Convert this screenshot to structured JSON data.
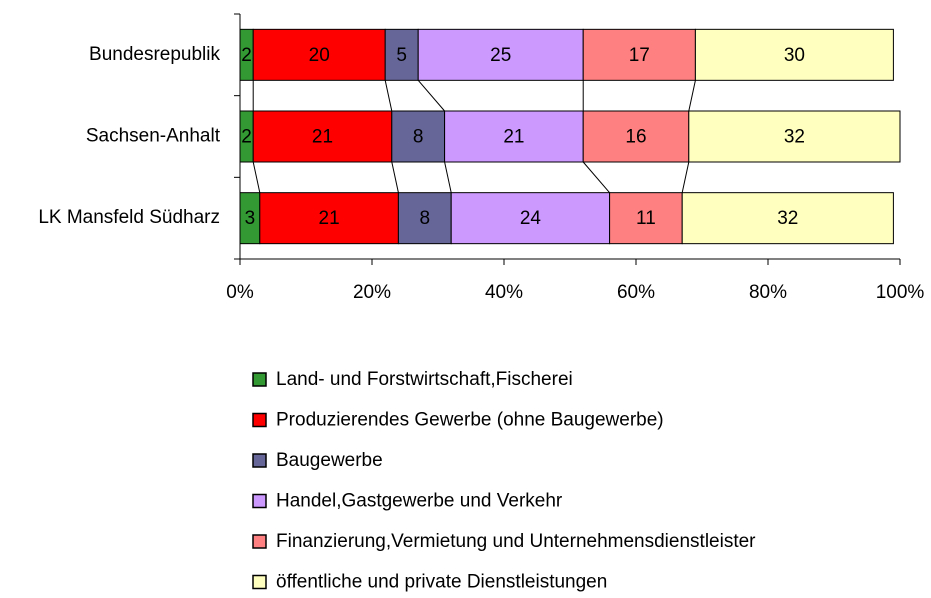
{
  "chart_data": {
    "type": "stacked_barh",
    "categories": [
      "Bundesrepublik",
      "Sachsen-Anhalt",
      "LK Mansfeld Südharz"
    ],
    "series": [
      {
        "name": "Land- und Forstwirtschaft,Fischerei",
        "color": "#339933",
        "values": [
          2,
          2,
          3
        ]
      },
      {
        "name": "Produzierendes Gewerbe (ohne Baugewerbe)",
        "color": "#ff0000",
        "values": [
          20,
          21,
          21
        ]
      },
      {
        "name": "Baugewerbe",
        "color": "#666699",
        "values": [
          5,
          8,
          8
        ]
      },
      {
        "name": "Handel,Gastgewerbe und Verkehr",
        "color": "#cc99ff",
        "values": [
          25,
          21,
          24
        ]
      },
      {
        "name": "Finanzierung,Vermietung und Unternehmensdienstleister",
        "color": "#ff8080",
        "values": [
          17,
          16,
          11
        ]
      },
      {
        "name": "öffentliche und private Dienstleistungen",
        "color": "#ffffc0",
        "values": [
          30,
          32,
          32
        ]
      }
    ],
    "xlim": [
      0,
      100
    ],
    "xticks": [
      {
        "value": 0,
        "label": "0%"
      },
      {
        "value": 20,
        "label": "20%"
      },
      {
        "value": 40,
        "label": "40%"
      },
      {
        "value": 60,
        "label": "60%"
      },
      {
        "value": 80,
        "label": "80%"
      },
      {
        "value": 100,
        "label": "100%"
      }
    ],
    "legend": "bottom"
  }
}
